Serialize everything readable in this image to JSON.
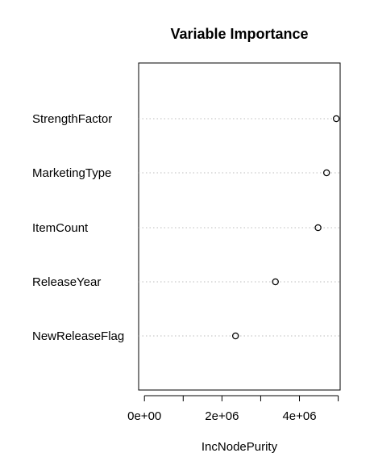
{
  "chart_data": {
    "type": "scatter",
    "title": "Variable Importance",
    "xlabel": "IncNodePurity",
    "ylabel": "",
    "categories": [
      "StrengthFactor",
      "MarketingType",
      "ItemCount",
      "ReleaseYear",
      "NewReleaseFlag"
    ],
    "series": [
      {
        "values": [
          4950000,
          4700000,
          4480000,
          3380000,
          2350000
        ]
      }
    ],
    "xlim": [
      -150000,
      5050000
    ],
    "x_ticks": [
      0,
      1000000,
      2000000,
      3000000,
      4000000,
      5000000
    ],
    "x_tick_labels": [
      {
        "value": 0,
        "label": "0e+00"
      },
      {
        "value": 2000000,
        "label": "2e+06"
      },
      {
        "value": 4000000,
        "label": "4e+06"
      }
    ],
    "grid": "dotted horizontal guide lines per variable",
    "legend": "none"
  }
}
